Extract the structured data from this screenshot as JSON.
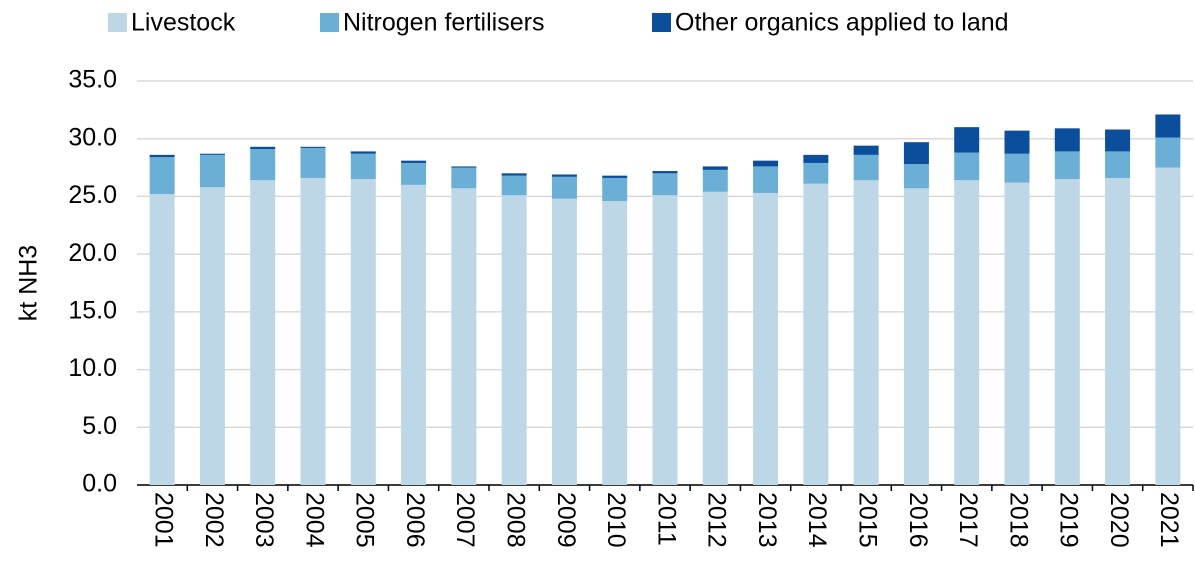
{
  "chart_data": {
    "type": "stacked_bar",
    "y_label": "kt NH3",
    "categories": [
      "2001",
      "2002",
      "2003",
      "2004",
      "2005",
      "2006",
      "2007",
      "2008",
      "2009",
      "2010",
      "2011",
      "2012",
      "2013",
      "2014",
      "2015",
      "2016",
      "2017",
      "2018",
      "2019",
      "2020",
      "2021"
    ],
    "series": [
      {
        "name": "Livestock",
        "color": "#bdd7e7",
        "values": [
          25.2,
          25.8,
          26.4,
          26.6,
          26.5,
          26.0,
          25.7,
          25.1,
          24.8,
          24.6,
          25.1,
          25.4,
          25.3,
          26.1,
          26.4,
          25.7,
          26.4,
          26.2,
          26.5,
          26.6,
          27.5
        ]
      },
      {
        "name": "Nitrogen fertilisers",
        "color": "#6baed6",
        "values": [
          3.2,
          2.8,
          2.7,
          2.6,
          2.2,
          1.9,
          1.8,
          1.7,
          1.9,
          2.0,
          1.9,
          1.9,
          2.3,
          1.8,
          2.2,
          2.1,
          2.4,
          2.5,
          2.4,
          2.3,
          2.6
        ]
      },
      {
        "name": "Other organics applied to land",
        "color": "#0b4f9c",
        "values": [
          0.2,
          0.1,
          0.2,
          0.1,
          0.2,
          0.2,
          0.1,
          0.2,
          0.2,
          0.2,
          0.2,
          0.3,
          0.5,
          0.7,
          0.8,
          1.9,
          2.2,
          2.0,
          2.0,
          1.9,
          2.0
        ]
      }
    ],
    "ylim": [
      0,
      35
    ],
    "yticks": [
      {
        "value": 0,
        "label": "0.0"
      },
      {
        "value": 5,
        "label": "5.0"
      },
      {
        "value": 10,
        "label": "10.0"
      },
      {
        "value": 15,
        "label": "15.0"
      },
      {
        "value": 20,
        "label": "20.0"
      },
      {
        "value": 25,
        "label": "25.0"
      },
      {
        "value": 30,
        "label": "30.0"
      },
      {
        "value": 35,
        "label": "35.0"
      }
    ],
    "grid": true,
    "legend": "top"
  }
}
